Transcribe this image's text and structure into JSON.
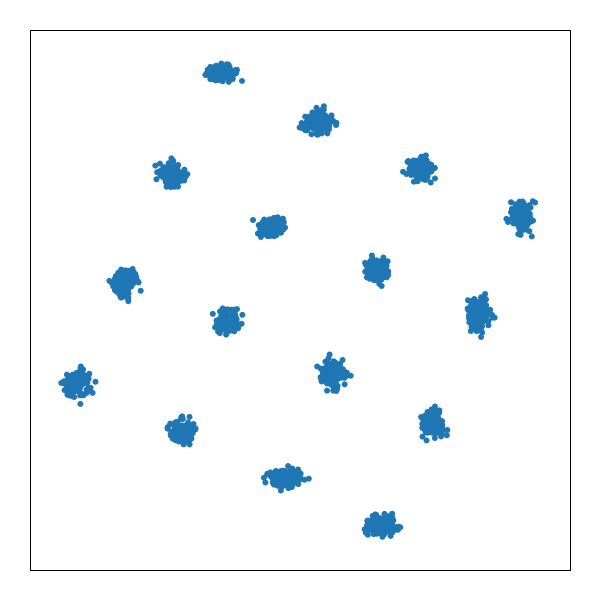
{
  "chart_data": {
    "type": "scatter",
    "title": "",
    "xlabel": "",
    "ylabel": "",
    "xlim": [
      0,
      100
    ],
    "ylim": [
      0,
      100
    ],
    "grid": false,
    "legend": "none",
    "ticks_visible": false,
    "marker_color": "#1f77b4",
    "points_per_cluster": 180,
    "clusters": [
      {
        "cx": 35.5,
        "cy": 92.0,
        "sx": 1.3,
        "sy": 0.75
      },
      {
        "cx": 53.3,
        "cy": 83.0,
        "sx": 1.3,
        "sy": 0.95
      },
      {
        "cx": 26.3,
        "cy": 73.0,
        "sx": 1.0,
        "sy": 1.1
      },
      {
        "cx": 72.4,
        "cy": 74.2,
        "sx": 1.1,
        "sy": 1.0
      },
      {
        "cx": 91.1,
        "cy": 65.7,
        "sx": 0.9,
        "sy": 1.3
      },
      {
        "cx": 44.5,
        "cy": 63.5,
        "sx": 1.1,
        "sy": 0.95
      },
      {
        "cx": 64.4,
        "cy": 55.6,
        "sx": 1.0,
        "sy": 1.0
      },
      {
        "cx": 17.6,
        "cy": 53.3,
        "sx": 1.0,
        "sy": 1.1
      },
      {
        "cx": 83.0,
        "cy": 47.3,
        "sx": 0.95,
        "sy": 1.3
      },
      {
        "cx": 36.6,
        "cy": 45.8,
        "sx": 1.0,
        "sy": 1.0
      },
      {
        "cx": 8.6,
        "cy": 34.6,
        "sx": 1.1,
        "sy": 1.2
      },
      {
        "cx": 56.0,
        "cy": 36.5,
        "sx": 1.1,
        "sy": 1.1
      },
      {
        "cx": 28.0,
        "cy": 25.5,
        "sx": 1.1,
        "sy": 1.0
      },
      {
        "cx": 74.5,
        "cy": 27.2,
        "sx": 1.0,
        "sy": 1.0
      },
      {
        "cx": 47.5,
        "cy": 17.0,
        "sx": 1.4,
        "sy": 0.8
      },
      {
        "cx": 65.0,
        "cy": 8.2,
        "sx": 1.4,
        "sy": 0.85
      }
    ]
  }
}
